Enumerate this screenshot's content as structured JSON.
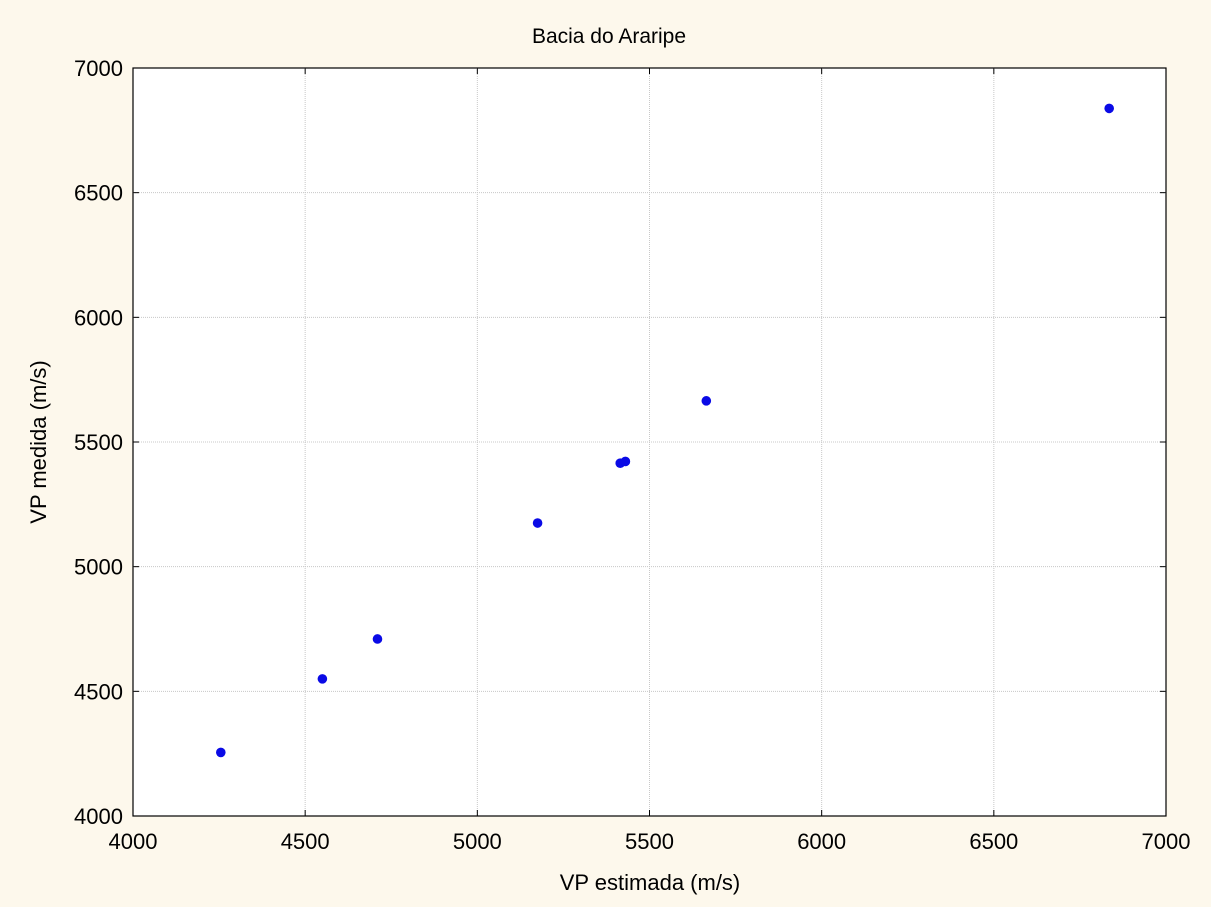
{
  "chart_data": {
    "type": "scatter",
    "title": "Bacia do Araripe",
    "xlabel": "VP estimada (m/s)",
    "ylabel": "VP medida (m/s)",
    "xlim": [
      4000,
      7000
    ],
    "ylim": [
      4000,
      7000
    ],
    "xticks": [
      4000,
      4500,
      5000,
      5500,
      6000,
      6500,
      7000
    ],
    "yticks": [
      4000,
      4500,
      5000,
      5500,
      6000,
      6500,
      7000
    ],
    "grid": true,
    "marker_color": "#0a0ae6",
    "background_color": "#fdf8ec",
    "points": [
      {
        "x": 4255,
        "y": 4255
      },
      {
        "x": 4550,
        "y": 4550
      },
      {
        "x": 4710,
        "y": 4710
      },
      {
        "x": 5175,
        "y": 5175
      },
      {
        "x": 5415,
        "y": 5415
      },
      {
        "x": 5430,
        "y": 5422
      },
      {
        "x": 5665,
        "y": 5665
      },
      {
        "x": 6835,
        "y": 6838
      }
    ]
  }
}
